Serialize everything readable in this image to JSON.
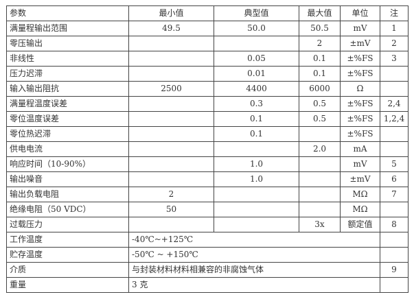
{
  "header": [
    "参数",
    "最小值",
    "典型值",
    "最大值",
    "单位",
    "注"
  ],
  "rows": [
    [
      "满量程输出范围",
      "49.5",
      "50.0",
      "50.5",
      "mV",
      "1"
    ],
    [
      "零压输出",
      "",
      "",
      "2",
      "±mV",
      "2"
    ],
    [
      "非线性",
      "",
      "0.05",
      "0.1",
      "±%FS",
      "3"
    ],
    [
      "压力迟滞",
      "",
      "0.01",
      "0.1",
      "±%FS",
      ""
    ],
    [
      "输入输出阻抗",
      "2500",
      "4400",
      "6000",
      "Ω",
      ""
    ],
    [
      "满量程温度误差",
      "",
      "0.3",
      "0.5",
      "±%FS",
      "2,4"
    ],
    [
      "零位温度误差",
      "",
      "0.1",
      "0.5",
      "±%FS",
      "1,2,4"
    ],
    [
      "零位热迟滞",
      "",
      "0.1",
      "",
      "±%FS",
      ""
    ],
    [
      "供电电流",
      "",
      "",
      "2.0",
      "mA",
      ""
    ],
    [
      "响应时间（10-90%）",
      "",
      "1.0",
      "",
      "mV",
      "5"
    ],
    [
      "输出噪音",
      "",
      "1.0",
      "",
      "±mV",
      "6"
    ],
    [
      "输出负载电阻",
      "2",
      "",
      "",
      "MΩ",
      "7"
    ],
    [
      "绝缘电阻（50 VDC）",
      "50",
      "",
      "",
      "MΩ",
      ""
    ],
    [
      "过载压力",
      "",
      "",
      "3x",
      "额定值",
      "8"
    ]
  ],
  "span_rows": [
    [
      "工作温度",
      "-40℃~+125℃",
      ""
    ],
    [
      "贮存温度",
      "-50℃ ~ +150℃",
      ""
    ],
    [
      "介质",
      "与封装材料材料相兼容的非腐蚀气体",
      "9"
    ],
    [
      "重量",
      "3 克",
      ""
    ]
  ]
}
